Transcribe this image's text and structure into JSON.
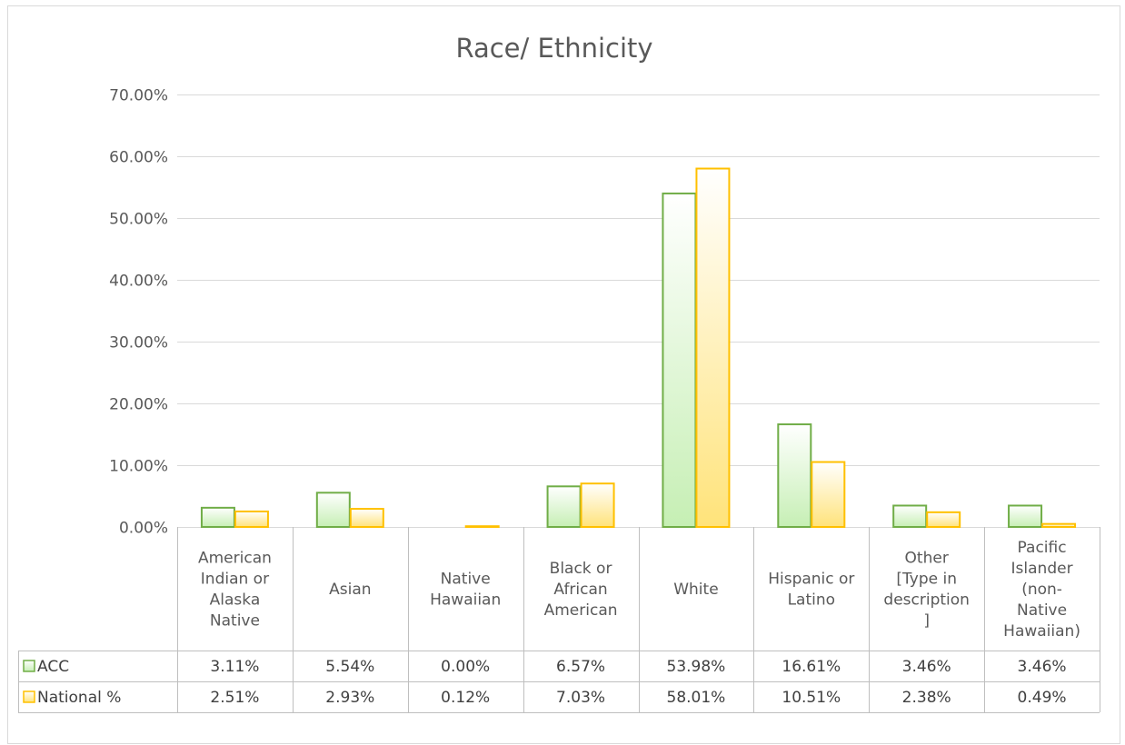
{
  "chart_data": {
    "type": "bar",
    "title": "Race/ Ethnicity",
    "ylim": [
      0,
      0.7
    ],
    "y_ticks": [
      "0.00%",
      "10.00%",
      "20.00%",
      "30.00%",
      "40.00%",
      "50.00%",
      "60.00%",
      "70.00%"
    ],
    "y_tick_values": [
      0,
      0.1,
      0.2,
      0.3,
      0.4,
      0.5,
      0.6,
      0.7
    ],
    "grid": true,
    "legend": "data-table",
    "categories": [
      [
        "American",
        "Indian or",
        "Alaska",
        "Native"
      ],
      [
        "Asian"
      ],
      [
        "Native",
        "Hawaiian"
      ],
      [
        "Black or",
        "African",
        "American"
      ],
      [
        "White"
      ],
      [
        "Hispanic or",
        "Latino"
      ],
      [
        "Other",
        "[Type in",
        "description",
        "]"
      ],
      [
        "Pacific",
        "Islander",
        "(non-",
        "Native",
        "Hawaiian)"
      ]
    ],
    "series": [
      {
        "name": "ACC",
        "values": [
          0.0311,
          0.0554,
          0.0,
          0.0657,
          0.5398,
          0.1661,
          0.0346,
          0.0346
        ],
        "labels": [
          "3.11%",
          "5.54%",
          "0.00%",
          "6.57%",
          "53.98%",
          "16.61%",
          "3.46%",
          "3.46%"
        ],
        "color": "#70ad47",
        "fill_top": "#ffffff",
        "fill_bottom": "#c6efb4"
      },
      {
        "name": "National %",
        "values": [
          0.0251,
          0.0293,
          0.0012,
          0.0703,
          0.5801,
          0.1051,
          0.0238,
          0.0049
        ],
        "labels": [
          "2.51%",
          "2.93%",
          "0.12%",
          "7.03%",
          "58.01%",
          "10.51%",
          "2.38%",
          "0.49%"
        ],
        "color": "#ffc000",
        "fill_top": "#ffffff",
        "fill_bottom": "#ffe37a"
      }
    ]
  }
}
